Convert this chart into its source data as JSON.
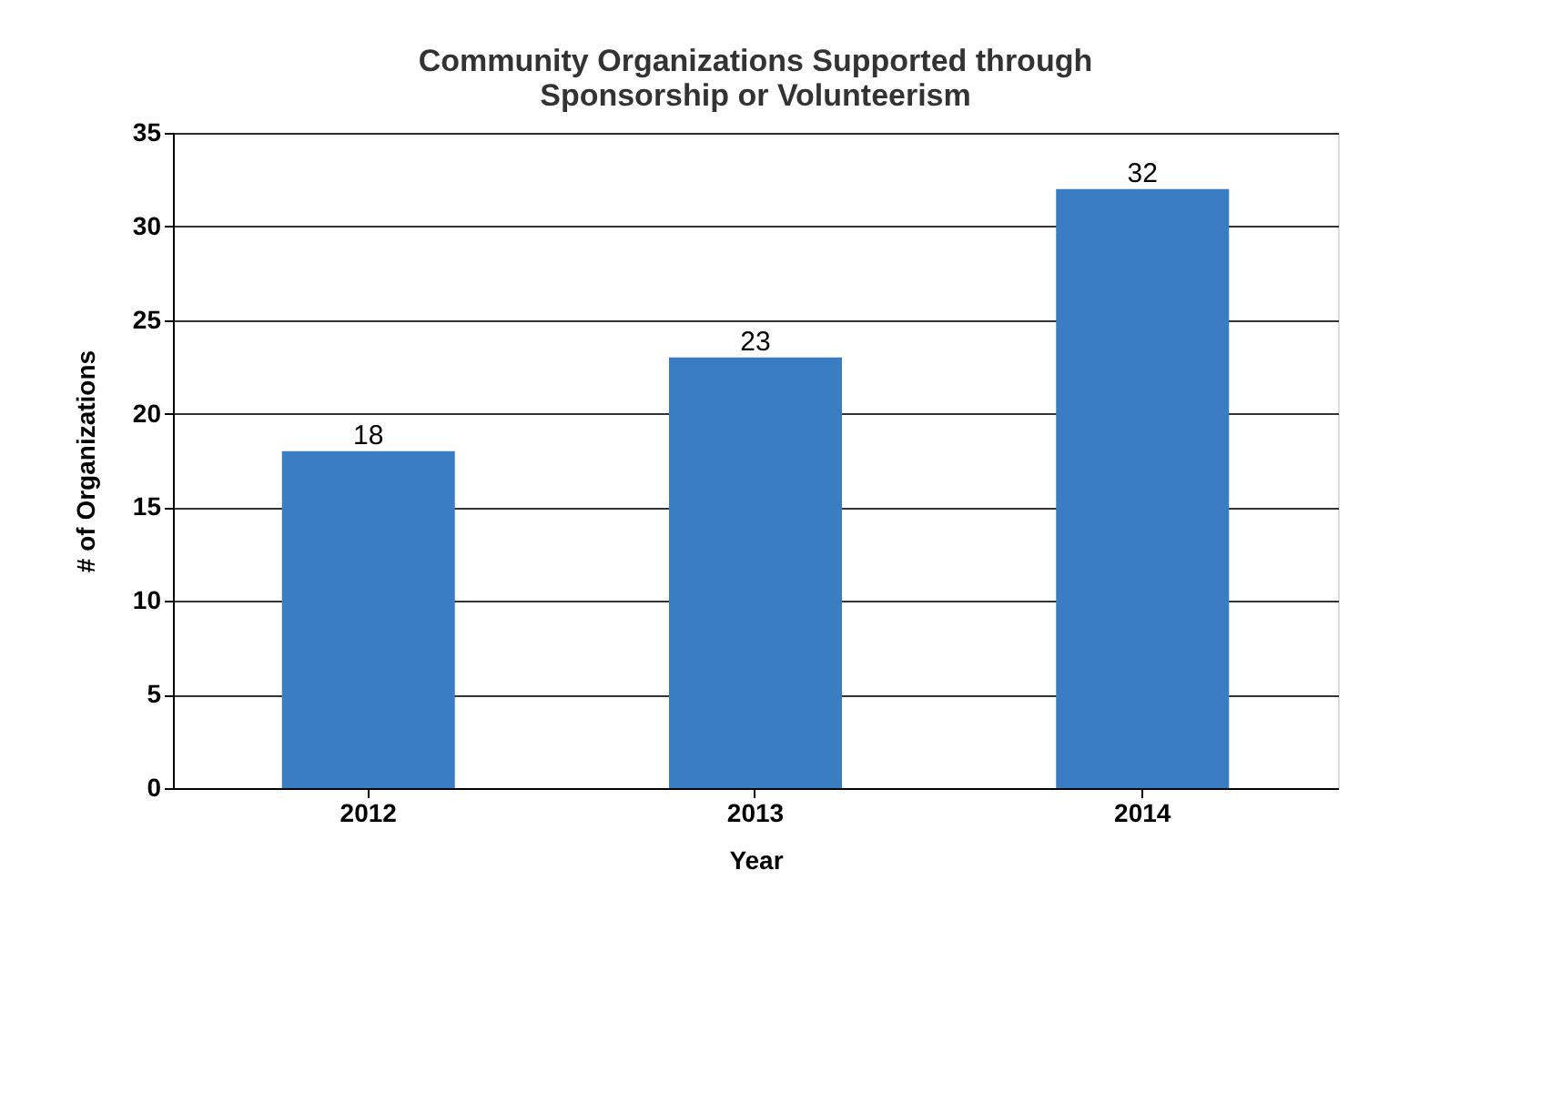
{
  "chart_data": {
    "type": "bar",
    "title": [
      "Community Organizations Supported through",
      "Sponsorship or Volunteerism"
    ],
    "xlabel": "Year",
    "ylabel": "# of Organizations",
    "categories": [
      "2012",
      "2013",
      "2014"
    ],
    "values": [
      18,
      23,
      32
    ],
    "color": "#3a7dc2",
    "ylim": [
      0,
      35
    ],
    "yticks": [
      0,
      5,
      10,
      15,
      20,
      25,
      30,
      35
    ],
    "grid": "y",
    "data_labels": true
  }
}
